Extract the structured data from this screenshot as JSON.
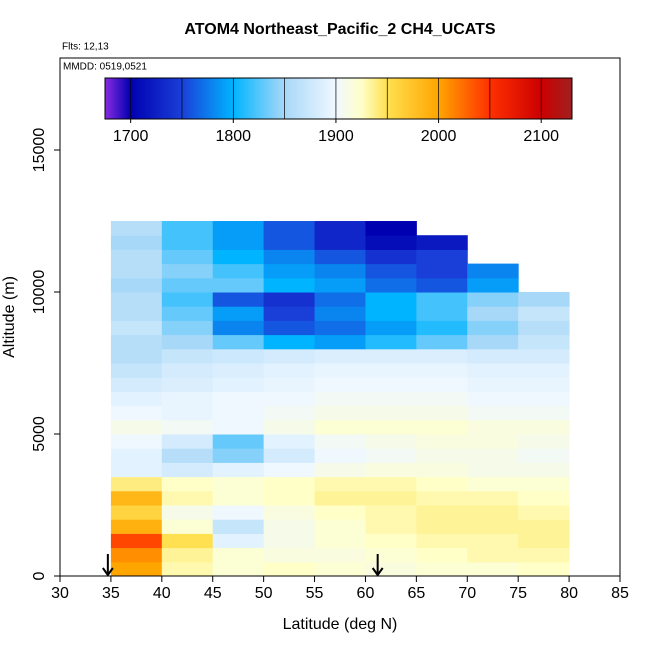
{
  "chart_data": {
    "type": "heatmap",
    "title": "ATOM4 Northeast_Pacific_2 CH4_UCATS",
    "flights_label": "Flts: 12,13",
    "dates_label": "MMDD: 0519,0521",
    "x_label": "Latitude (deg N)",
    "y_label": "Altitude (m)",
    "xlim": [
      30,
      85
    ],
    "xticks": [
      30,
      35,
      40,
      45,
      50,
      55,
      60,
      65,
      70,
      75,
      80,
      85
    ],
    "ylim": [
      0,
      18240
    ],
    "yticks": [
      0,
      5000,
      10000,
      15000
    ],
    "x_edges": [
      35,
      40,
      45,
      50,
      55,
      60,
      65,
      70,
      75,
      80
    ],
    "y_edges": [
      0,
      500,
      1000,
      1500,
      2000,
      2500,
      3000,
      3500,
      4000,
      4500,
      5000,
      5500,
      6000,
      6500,
      7000,
      7500,
      8000,
      8500,
      9000,
      9500,
      10000,
      10500,
      11000,
      11500,
      12000,
      12500
    ],
    "z": [
      [
        2000,
        1930,
        1920,
        1925,
        1920,
        1915,
        1920,
        1920,
        1925
      ],
      [
        2010,
        1935,
        1920,
        1915,
        1915,
        1920,
        1925,
        1930,
        1930
      ],
      [
        2040,
        1950,
        1890,
        1910,
        1920,
        1925,
        1930,
        1930,
        1935
      ],
      [
        1990,
        1920,
        1870,
        1910,
        1920,
        1930,
        1935,
        1935,
        1935
      ],
      [
        1960,
        1910,
        1900,
        1915,
        1925,
        1930,
        1935,
        1935,
        1930
      ],
      [
        1985,
        1930,
        1920,
        1925,
        1935,
        1935,
        1930,
        1930,
        1925
      ],
      [
        1940,
        1925,
        1920,
        1925,
        1930,
        1930,
        1925,
        1920,
        1920
      ],
      [
        1890,
        1880,
        1890,
        1900,
        1910,
        1915,
        1915,
        1910,
        1910
      ],
      [
        1890,
        1860,
        1840,
        1880,
        1900,
        1905,
        1910,
        1910,
        1905
      ],
      [
        1900,
        1880,
        1830,
        1890,
        1905,
        1910,
        1915,
        1915,
        1910
      ],
      [
        1910,
        1905,
        1900,
        1910,
        1920,
        1920,
        1920,
        1915,
        1915
      ],
      [
        1900,
        1895,
        1900,
        1905,
        1910,
        1910,
        1910,
        1905,
        1905
      ],
      [
        1890,
        1895,
        1900,
        1900,
        1905,
        1905,
        1905,
        1900,
        1900
      ],
      [
        1880,
        1885,
        1890,
        1895,
        1900,
        1900,
        1900,
        1895,
        1895
      ],
      [
        1870,
        1880,
        1885,
        1890,
        1895,
        1895,
        1895,
        1890,
        1890
      ],
      [
        1860,
        1870,
        1875,
        1880,
        1885,
        1885,
        1885,
        1880,
        1880
      ],
      [
        1860,
        1850,
        1830,
        1800,
        1790,
        1810,
        1830,
        1850,
        1870
      ],
      [
        1870,
        1840,
        1780,
        1760,
        1770,
        1790,
        1810,
        1840,
        1860
      ],
      [
        1860,
        1830,
        1790,
        1750,
        1780,
        1800,
        1820,
        1850,
        1870
      ],
      [
        1860,
        1820,
        1760,
        1740,
        1770,
        1800,
        1820,
        1840,
        1850
      ],
      [
        1850,
        1830,
        1830,
        1800,
        1790,
        1770,
        1760,
        1790,
        null
      ],
      [
        1860,
        1840,
        1820,
        1790,
        1780,
        1760,
        1750,
        1780,
        null
      ],
      [
        1860,
        1830,
        1800,
        1780,
        1760,
        1740,
        1750,
        null,
        null
      ],
      [
        1850,
        1820,
        1790,
        1760,
        1730,
        1710,
        1720,
        null,
        null
      ],
      [
        1860,
        1820,
        1790,
        1760,
        1730,
        1700,
        null,
        null,
        null
      ]
    ],
    "colorscale": [
      [
        1675,
        "#8a2be2"
      ],
      [
        1700,
        "#0000b0"
      ],
      [
        1750,
        "#1a3fd8"
      ],
      [
        1800,
        "#00b4ff"
      ],
      [
        1850,
        "#a8d8f8"
      ],
      [
        1900,
        "#f0f8ff"
      ],
      [
        1925,
        "#ffffc8"
      ],
      [
        1950,
        "#ffe050"
      ],
      [
        2000,
        "#ffa500"
      ],
      [
        2050,
        "#ff3000"
      ],
      [
        2100,
        "#cc0000"
      ],
      [
        2130,
        "#a02020"
      ]
    ],
    "colorbar": {
      "lim": [
        1675,
        2130
      ],
      "ticks": [
        1700,
        1800,
        1900,
        2000,
        2100
      ],
      "breaks": [
        1700,
        1750,
        1800,
        1850,
        1900,
        1950,
        2000,
        2050,
        2100
      ]
    },
    "arrows": [
      34.7,
      61.2
    ]
  }
}
